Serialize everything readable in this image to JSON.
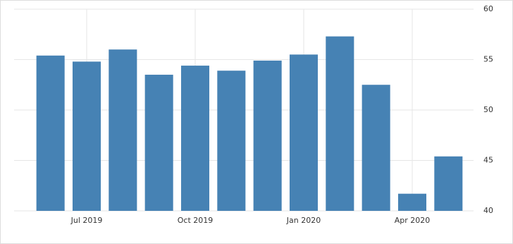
{
  "chart_data": {
    "type": "bar",
    "categories": [
      null,
      "Jul 2019",
      null,
      null,
      "Oct 2019",
      null,
      null,
      "Jan 2020",
      null,
      null,
      "Apr 2020",
      null
    ],
    "values": [
      55.4,
      54.8,
      56.0,
      53.5,
      54.4,
      53.9,
      54.9,
      55.5,
      57.3,
      52.5,
      41.7,
      45.4
    ],
    "color": "#4682b4",
    "ylim": [
      40,
      60
    ],
    "yticks": [
      40,
      45,
      50,
      55,
      60
    ],
    "grid": true
  }
}
